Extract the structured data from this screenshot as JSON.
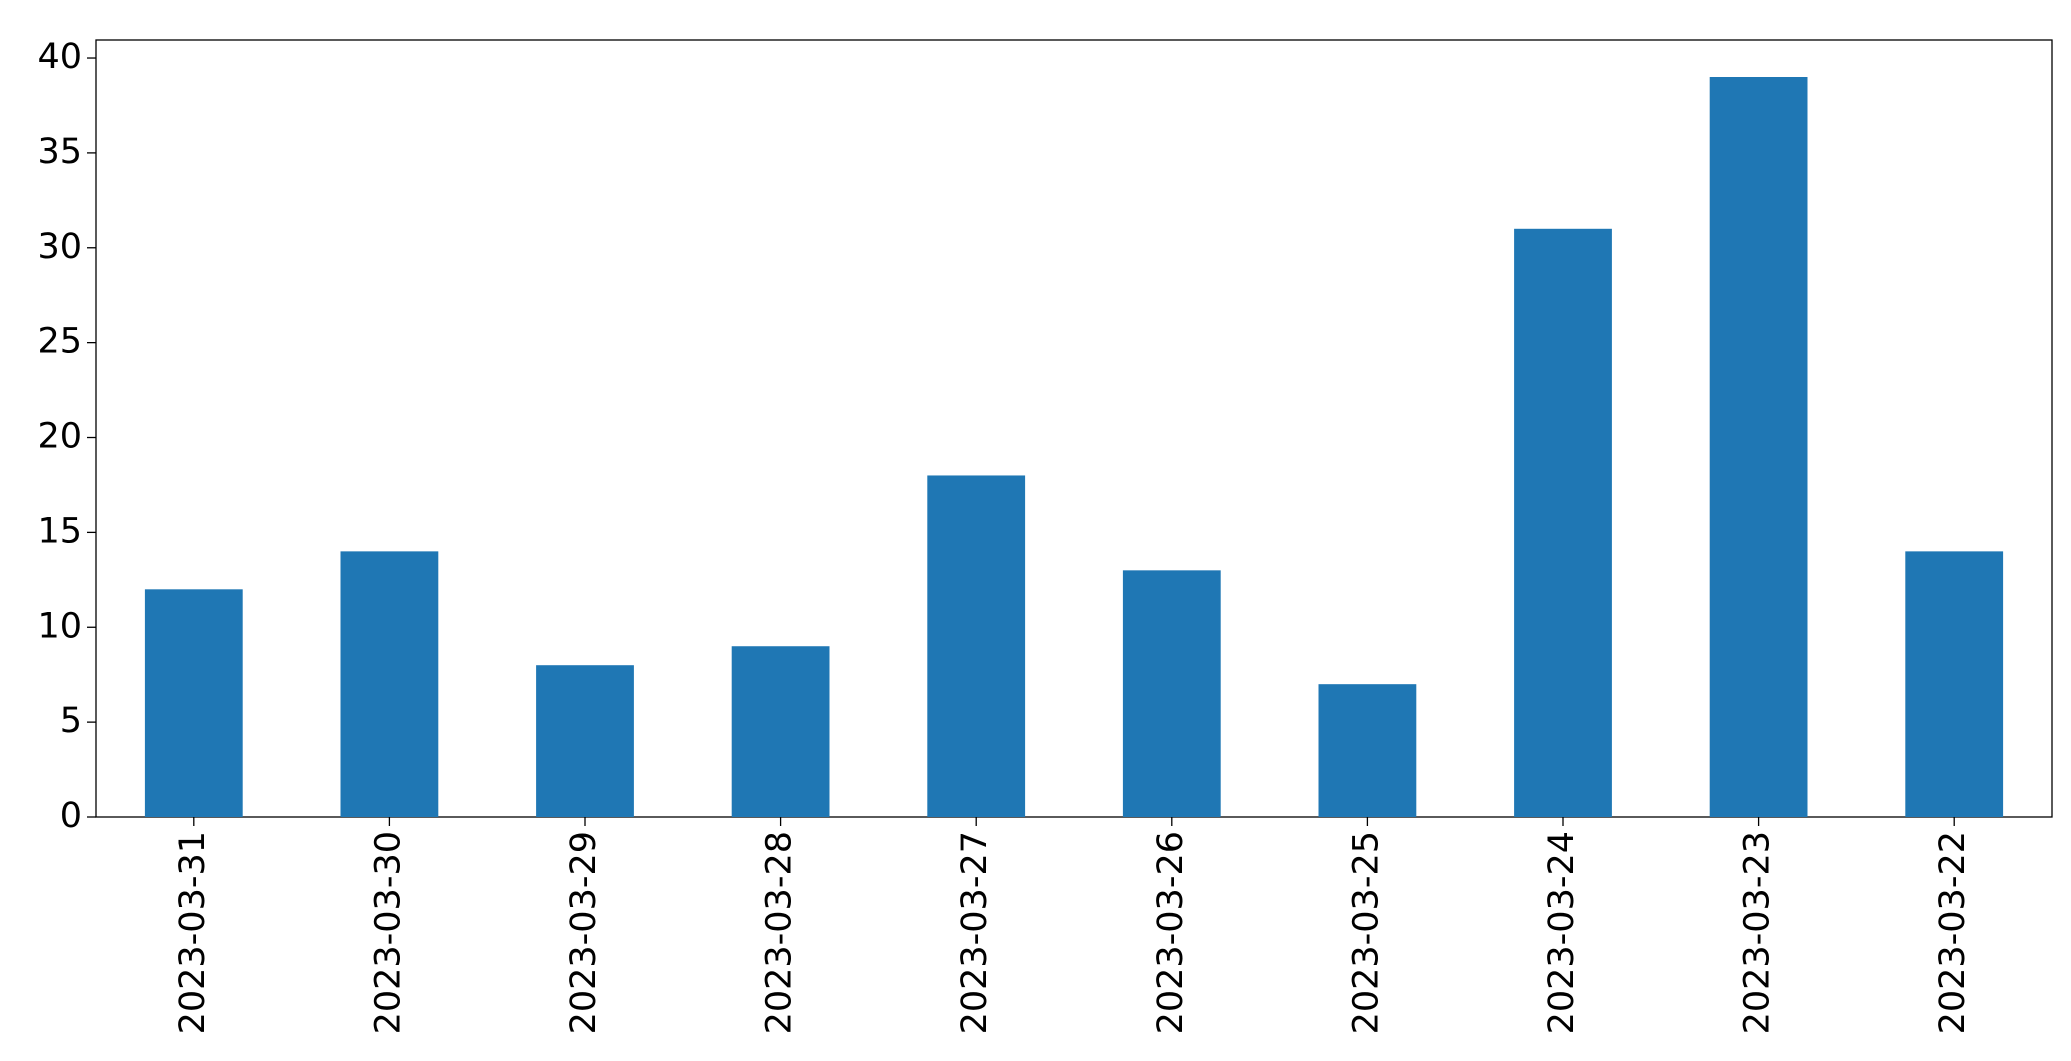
{
  "chart_data": {
    "type": "bar",
    "categories": [
      "2023-03-31",
      "2023-03-30",
      "2023-03-29",
      "2023-03-28",
      "2023-03-27",
      "2023-03-26",
      "2023-03-25",
      "2023-03-24",
      "2023-03-23",
      "2023-03-22"
    ],
    "values": [
      12,
      14,
      8,
      9,
      18,
      13,
      7,
      31,
      39,
      14
    ],
    "color": "#1f77b4",
    "ylim": [
      0,
      40.95
    ],
    "yticks": [
      0,
      5,
      10,
      15,
      20,
      25,
      30,
      35,
      40
    ],
    "grid": false
  }
}
